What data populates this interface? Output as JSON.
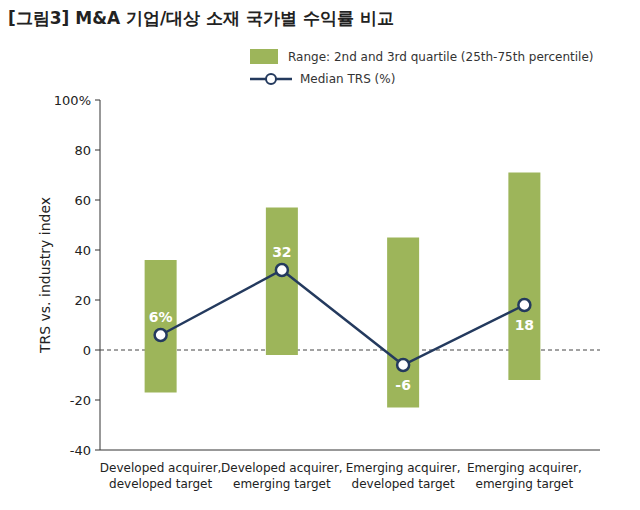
{
  "chart_data": {
    "type": "range_bar_line",
    "title": "[그림3] M&A 기업/대상 소재 국가별 수익률 비교",
    "y_label": "TRS vs. industry index",
    "categories": [
      "Developed acquirer, developed target",
      "Developed acquirer, emerging target",
      "Emerging acquirer, developed target",
      "Emerging acquirer, emerging target"
    ],
    "series": [
      {
        "name": "Range: 2nd and 3rd quartile (25th-75th percentile)",
        "type": "bar",
        "color": "#9db55a",
        "low": [
          -17,
          -2,
          -23,
          -12
        ],
        "high": [
          36,
          57,
          45,
          71
        ]
      },
      {
        "name": "Median TRS (%)",
        "type": "line",
        "color": "#243a5e",
        "marker": "circle",
        "values": [
          6,
          32,
          -6,
          18
        ],
        "value_labels": [
          "6%",
          "32",
          "-6",
          "18"
        ]
      }
    ],
    "baseline": 0,
    "ylim": [
      -40,
      100
    ],
    "yticks": [
      -40,
      -20,
      0,
      20,
      40,
      60,
      80,
      {
        "value": 100,
        "label": "100%"
      }
    ],
    "data_labels": true,
    "grid": false
  }
}
